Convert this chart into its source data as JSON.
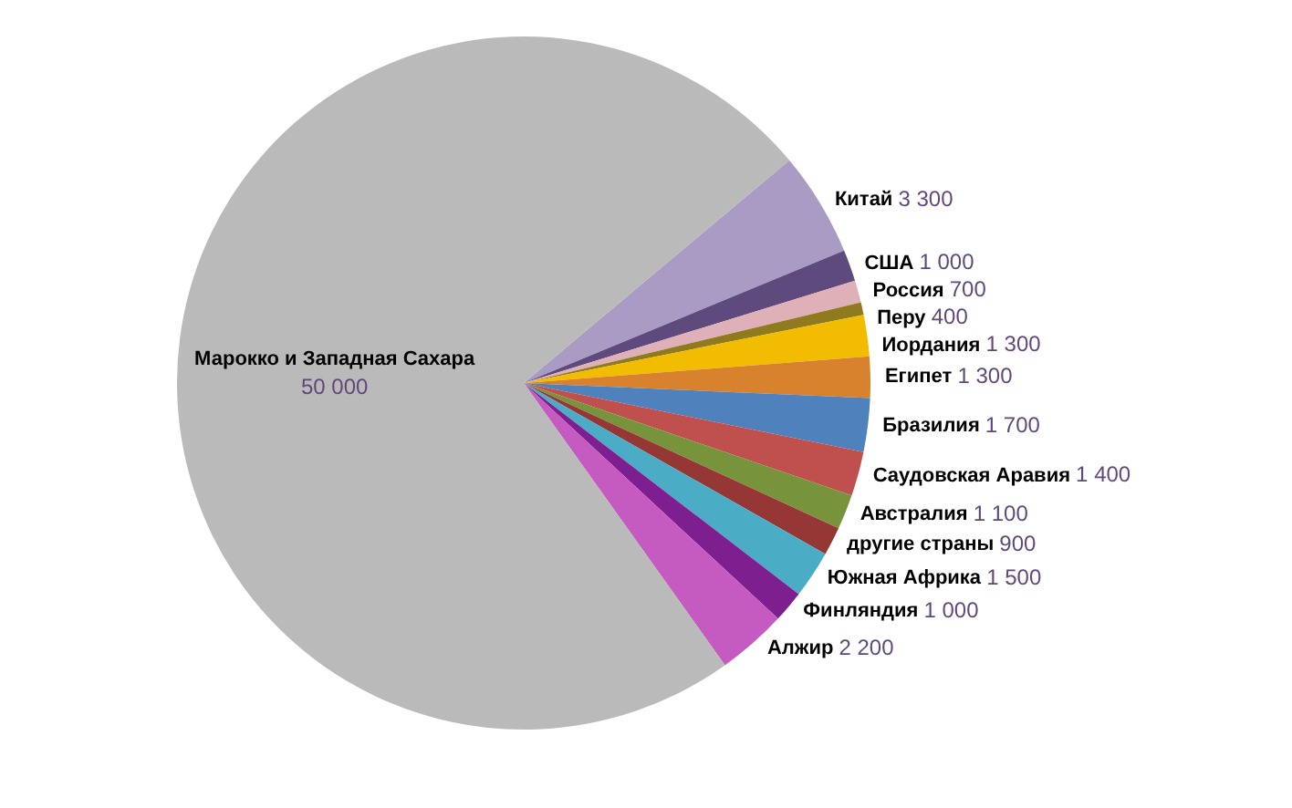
{
  "chart_data": {
    "type": "pie",
    "categories": [
      "Китай",
      "США",
      "Россия",
      "Перу",
      "Иордания",
      "Египет",
      "Бразилия",
      "Саудовская Аравия",
      "Австралия",
      "другие страны",
      "Южная Африка",
      "Финляндия",
      "Алжир",
      "Марокко и Западная Сахара"
    ],
    "values": [
      3300,
      1000,
      700,
      400,
      1300,
      1300,
      1700,
      1400,
      1100,
      900,
      1500,
      1000,
      2200,
      50000
    ],
    "value_labels": [
      "3 300",
      "1 000",
      "700",
      "400",
      "1 300",
      "1 300",
      "1 700",
      "1 400",
      "1 100",
      "900",
      "1 500",
      "1 000",
      "2 200",
      "50 000"
    ],
    "colors": [
      "#a99bc4",
      "#5e4a7c",
      "#e0b0b8",
      "#8f7a1e",
      "#f2bc00",
      "#d9822e",
      "#4f81bd",
      "#c0504d",
      "#77933c",
      "#953735",
      "#4bacc6",
      "#7d1f8f",
      "#c55ac0",
      "#bababa"
    ],
    "legend": false
  }
}
